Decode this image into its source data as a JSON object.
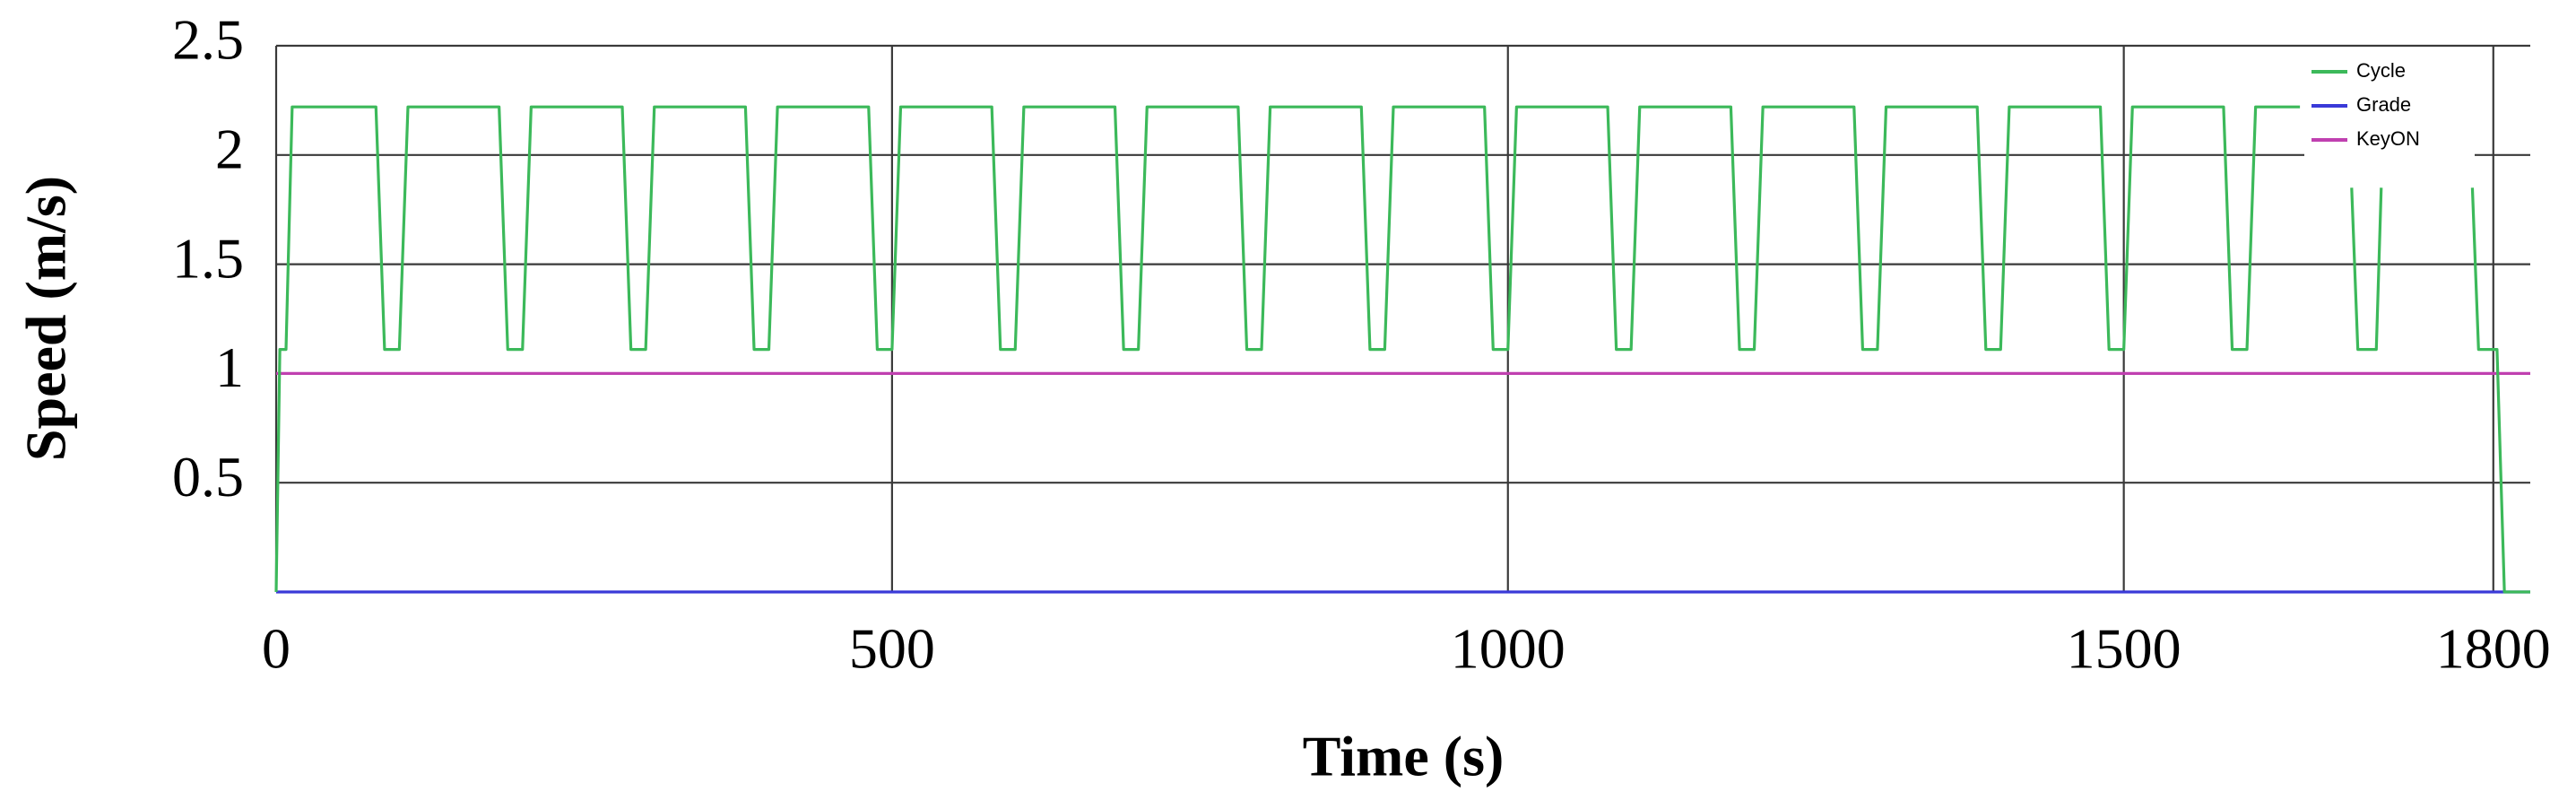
{
  "chart_data": {
    "type": "line",
    "xlabel": "Time (s)",
    "ylabel": "Speed (m/s)",
    "xlim": [
      0,
      1830
    ],
    "ylim": [
      0,
      2.5
    ],
    "xticks": [
      0,
      500,
      1000,
      1500,
      1800
    ],
    "yticks": [
      0.5,
      1,
      1.5,
      2,
      2.5
    ],
    "grid": true,
    "legend": "top-right",
    "series": [
      {
        "name": "Cycle",
        "color": "#3cb95a",
        "x": [
          0,
          3,
          8,
          13,
          81,
          88,
          100,
          107,
          181,
          188,
          200,
          207,
          281,
          288,
          300,
          307,
          381,
          388,
          400,
          407,
          481,
          488,
          500,
          507,
          581,
          588,
          600,
          607,
          681,
          688,
          700,
          707,
          781,
          788,
          800,
          807,
          881,
          888,
          900,
          907,
          981,
          988,
          1000,
          1007,
          1081,
          1088,
          1100,
          1107,
          1181,
          1188,
          1200,
          1207,
          1281,
          1288,
          1300,
          1307,
          1381,
          1388,
          1400,
          1407,
          1481,
          1488,
          1500,
          1507,
          1581,
          1588,
          1600,
          1607,
          1643,
          1660,
          1685,
          1690,
          1705,
          1709,
          1740,
          1783,
          1788,
          1803,
          1809,
          1830
        ],
        "values": [
          0,
          1.11,
          1.11,
          2.22,
          2.22,
          1.11,
          1.11,
          2.22,
          2.22,
          1.11,
          1.11,
          2.22,
          2.22,
          1.11,
          1.11,
          2.22,
          2.22,
          1.11,
          1.11,
          2.22,
          2.22,
          1.11,
          1.11,
          2.22,
          2.22,
          1.11,
          1.11,
          2.22,
          2.22,
          1.11,
          1.11,
          2.22,
          2.22,
          1.11,
          1.11,
          2.22,
          2.22,
          1.11,
          1.11,
          2.22,
          2.22,
          1.11,
          1.11,
          2.22,
          2.22,
          1.11,
          1.11,
          2.22,
          2.22,
          1.11,
          1.11,
          2.22,
          2.22,
          1.11,
          1.11,
          2.22,
          2.22,
          1.11,
          1.11,
          2.22,
          2.22,
          1.11,
          1.11,
          2.22,
          2.22,
          1.11,
          1.11,
          2.22,
          2.22,
          null,
          1.85,
          1.11,
          1.11,
          1.85,
          null,
          1.85,
          1.11,
          1.11,
          0,
          0
        ]
      },
      {
        "name": "Grade",
        "color": "#3a3ad8",
        "x": [
          0,
          1830
        ],
        "values": [
          0,
          0
        ]
      },
      {
        "name": "KeyON",
        "color": "#c040b0",
        "x": [
          0,
          1830
        ],
        "values": [
          1,
          1
        ]
      }
    ]
  }
}
